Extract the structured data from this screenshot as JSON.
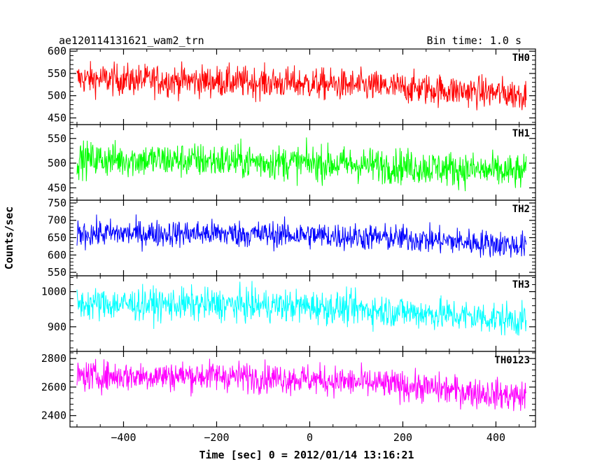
{
  "chart_data": {
    "type": "line",
    "title": "ae120114131621_wam2_trn",
    "bin_time": "Bin time: 1.0 s",
    "xlabel": "Time [sec] 0 = 2012/01/14 13:16:21",
    "ylabel": "Counts/sec",
    "xlim": [
      -515,
      485
    ],
    "x_range": [
      -500,
      465
    ],
    "x_ticks": [
      "−400",
      "−200",
      "0",
      "200",
      "400"
    ],
    "x_tick_values": [
      -400,
      -200,
      0,
      200,
      400
    ],
    "panels": [
      {
        "name": "TH0",
        "color": "#ff0000",
        "ylim": [
          435,
          605
        ],
        "y_ticks": [
          "450",
          "500",
          "550",
          "600"
        ],
        "y_tick_values": [
          450,
          500,
          550,
          600
        ],
        "trend": [
          [
            -500,
            538
          ],
          [
            -200,
            532
          ],
          [
            0,
            527
          ],
          [
            200,
            518
          ],
          [
            465,
            502
          ]
        ],
        "noise_amplitude": 32
      },
      {
        "name": "TH1",
        "color": "#00ff00",
        "ylim": [
          425,
          578
        ],
        "y_ticks": [
          "450",
          "500",
          "550"
        ],
        "y_tick_values": [
          450,
          500,
          550
        ],
        "trend": [
          [
            -500,
            508
          ],
          [
            -200,
            505
          ],
          [
            0,
            500
          ],
          [
            200,
            494
          ],
          [
            465,
            480
          ]
        ],
        "noise_amplitude": 32
      },
      {
        "name": "TH2",
        "color": "#0000ff",
        "ylim": [
          540,
          758
        ],
        "y_ticks": [
          "550",
          "600",
          "650",
          "700",
          "750"
        ],
        "y_tick_values": [
          550,
          600,
          650,
          700,
          750
        ],
        "trend": [
          [
            -500,
            662
          ],
          [
            -200,
            662
          ],
          [
            0,
            657
          ],
          [
            200,
            648
          ],
          [
            465,
            627
          ]
        ],
        "noise_amplitude": 35
      },
      {
        "name": "TH3",
        "color": "#00ffff",
        "ylim": [
          830,
          1045
        ],
        "y_ticks": [
          "900",
          "1000"
        ],
        "y_tick_values": [
          900,
          1000
        ],
        "trend": [
          [
            -500,
            965
          ],
          [
            -200,
            963
          ],
          [
            0,
            958
          ],
          [
            200,
            943
          ],
          [
            465,
            918
          ]
        ],
        "noise_amplitude": 42
      },
      {
        "name": "TH0123",
        "color": "#ff00ff",
        "ylim": [
          2320,
          2850
        ],
        "y_ticks": [
          "2400",
          "2600",
          "2800"
        ],
        "y_tick_values": [
          2400,
          2600,
          2800
        ],
        "trend": [
          [
            -500,
            2675
          ],
          [
            -200,
            2680
          ],
          [
            0,
            2655
          ],
          [
            200,
            2610
          ],
          [
            465,
            2530
          ]
        ],
        "noise_amplitude": 95
      }
    ]
  }
}
